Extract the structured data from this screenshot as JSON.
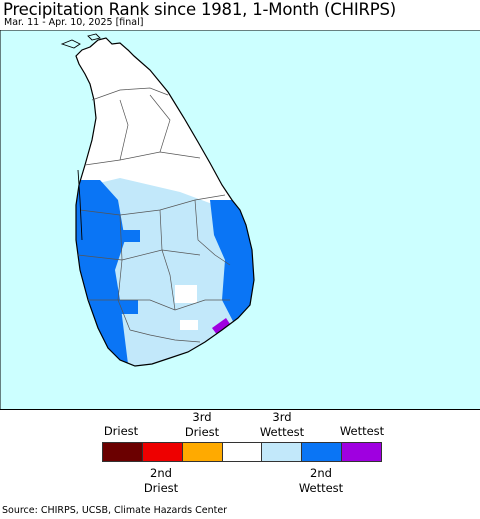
{
  "title": "Precipitation Rank since 1981, 1-Month (CHIRPS)",
  "subtitle": "Mar. 11 - Apr. 10, 2025 [final]",
  "colors": {
    "ocean": "#ccffff",
    "land_normal": "#ffffff",
    "wet": "#c2e8fa",
    "very_wet": "#0a75f5",
    "wettest": "#9f00e0"
  },
  "legend": {
    "top_labels": [
      {
        "line1": "",
        "line2": "Driest"
      },
      {
        "line1": "3rd",
        "line2": "Driest"
      },
      {
        "line1": "3rd",
        "line2": "Wettest"
      },
      {
        "line1": "",
        "line2": "Wettest"
      }
    ],
    "bottom_labels": [
      {
        "line1": "2nd",
        "line2": "Driest"
      },
      {
        "line1": "2nd",
        "line2": "Wettest"
      }
    ],
    "swatches": [
      "#6b0000",
      "#ee0000",
      "#ffaa00",
      "#ffffff",
      "#c2e8fa",
      "#0a75f5",
      "#9f00e0"
    ]
  },
  "source": "Source: CHIRPS, UCSB, Climate Hazards Center"
}
